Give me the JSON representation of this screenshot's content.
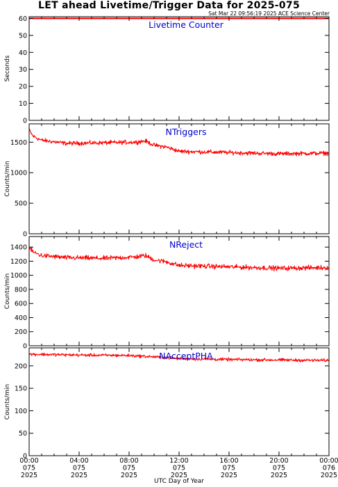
{
  "title": "LET ahead Livetime/Trigger Data for 2025-075",
  "subtitle": "Sat Mar 22 09:56:19 2025 ACE Science Center",
  "xlabel": "UTC Day of Year",
  "x_ticks": [
    {
      "time": "00:00",
      "doy": "075",
      "year": "2025"
    },
    {
      "time": "04:00",
      "doy": "075",
      "year": "2025"
    },
    {
      "time": "08:00",
      "doy": "075",
      "year": "2025"
    },
    {
      "time": "12:00",
      "doy": "075",
      "year": "2025"
    },
    {
      "time": "16:00",
      "doy": "075",
      "year": "2025"
    },
    {
      "time": "20:00",
      "doy": "075",
      "year": "2025"
    },
    {
      "time": "00:00",
      "doy": "076",
      "year": "2025"
    }
  ],
  "colors": {
    "series": "#ff0000",
    "label": "#0000cc",
    "axis": "#000000"
  },
  "chart_data": [
    {
      "type": "line",
      "title": "Livetime Counter",
      "ylabel": "Seconds",
      "ylim": [
        0,
        61
      ],
      "yticks": [
        0,
        10,
        20,
        30,
        40,
        50,
        60
      ],
      "x_range_hours": [
        0,
        24
      ],
      "segments": [
        {
          "x_hours": [
            0,
            24
          ],
          "mean": [
            60,
            60
          ],
          "noise": 0
        }
      ]
    },
    {
      "type": "line",
      "title": "NTriggers",
      "ylabel": "Counts/min",
      "ylim": [
        0,
        1800
      ],
      "yticks": [
        0,
        500,
        1000,
        1500
      ],
      "x_range_hours": [
        0,
        24
      ],
      "segments": [
        {
          "x_hours": [
            0,
            0.3,
            1.0,
            3.0,
            6.0,
            8.5,
            9.3,
            10.0,
            11.0,
            12.0,
            16.0,
            20.0,
            24.0
          ],
          "mean": [
            1700,
            1600,
            1530,
            1480,
            1490,
            1500,
            1520,
            1450,
            1420,
            1350,
            1330,
            1310,
            1320
          ],
          "noise": 50
        }
      ]
    },
    {
      "type": "line",
      "title": "NReject",
      "ylabel": "Counts/min",
      "ylim": [
        0,
        1550
      ],
      "yticks": [
        0,
        200,
        400,
        600,
        800,
        1000,
        1200,
        1400
      ],
      "x_range_hours": [
        0,
        24
      ],
      "segments": [
        {
          "x_hours": [
            0,
            0.3,
            1.0,
            3.0,
            6.0,
            8.5,
            9.3,
            10.0,
            11.0,
            12.0,
            16.0,
            20.0,
            24.0
          ],
          "mean": [
            1400,
            1330,
            1280,
            1250,
            1240,
            1260,
            1280,
            1220,
            1190,
            1140,
            1120,
            1100,
            1110
          ],
          "noise": 50
        }
      ]
    },
    {
      "type": "line",
      "title": "NAcceptPHA",
      "ylabel": "Counts/min",
      "ylim": [
        0,
        240
      ],
      "yticks": [
        0,
        50,
        100,
        150,
        200
      ],
      "x_range_hours": [
        0,
        24
      ],
      "segments": [
        {
          "x_hours": [
            0,
            4.0,
            8.0,
            10.0,
            12.0,
            16.0,
            20.0,
            24.0
          ],
          "mean": [
            226,
            224,
            223,
            220,
            216,
            214,
            213,
            212
          ],
          "noise": 5
        }
      ]
    }
  ]
}
